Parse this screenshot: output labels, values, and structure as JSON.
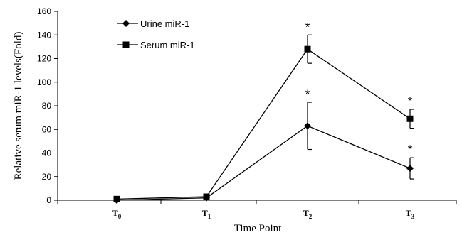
{
  "chart_data": {
    "type": "line",
    "xlabel": "Time Point",
    "ylabel": "Relative serum miR-1 levels(Fold)",
    "categories": [
      {
        "base": "T",
        "sub": "0"
      },
      {
        "base": "T",
        "sub": "1"
      },
      {
        "base": "T",
        "sub": "2"
      },
      {
        "base": "T",
        "sub": "3"
      }
    ],
    "ylim": [
      0,
      160
    ],
    "yticks": [
      0,
      20,
      40,
      60,
      80,
      100,
      120,
      140,
      160
    ],
    "legend_position": "top-left",
    "grid": false,
    "series": [
      {
        "name": "Urine miR-1",
        "marker": "diamond",
        "color": "#000000",
        "values": [
          0,
          2,
          63,
          27
        ],
        "errors": [
          0,
          0,
          20,
          9
        ],
        "significance": [
          "",
          "",
          "*",
          "*"
        ]
      },
      {
        "name": "Serum miR-1",
        "marker": "square",
        "color": "#000000",
        "values": [
          1,
          3,
          128,
          69
        ],
        "errors": [
          0,
          0,
          12,
          8
        ],
        "significance": [
          "",
          "",
          "*",
          "*"
        ]
      }
    ]
  }
}
